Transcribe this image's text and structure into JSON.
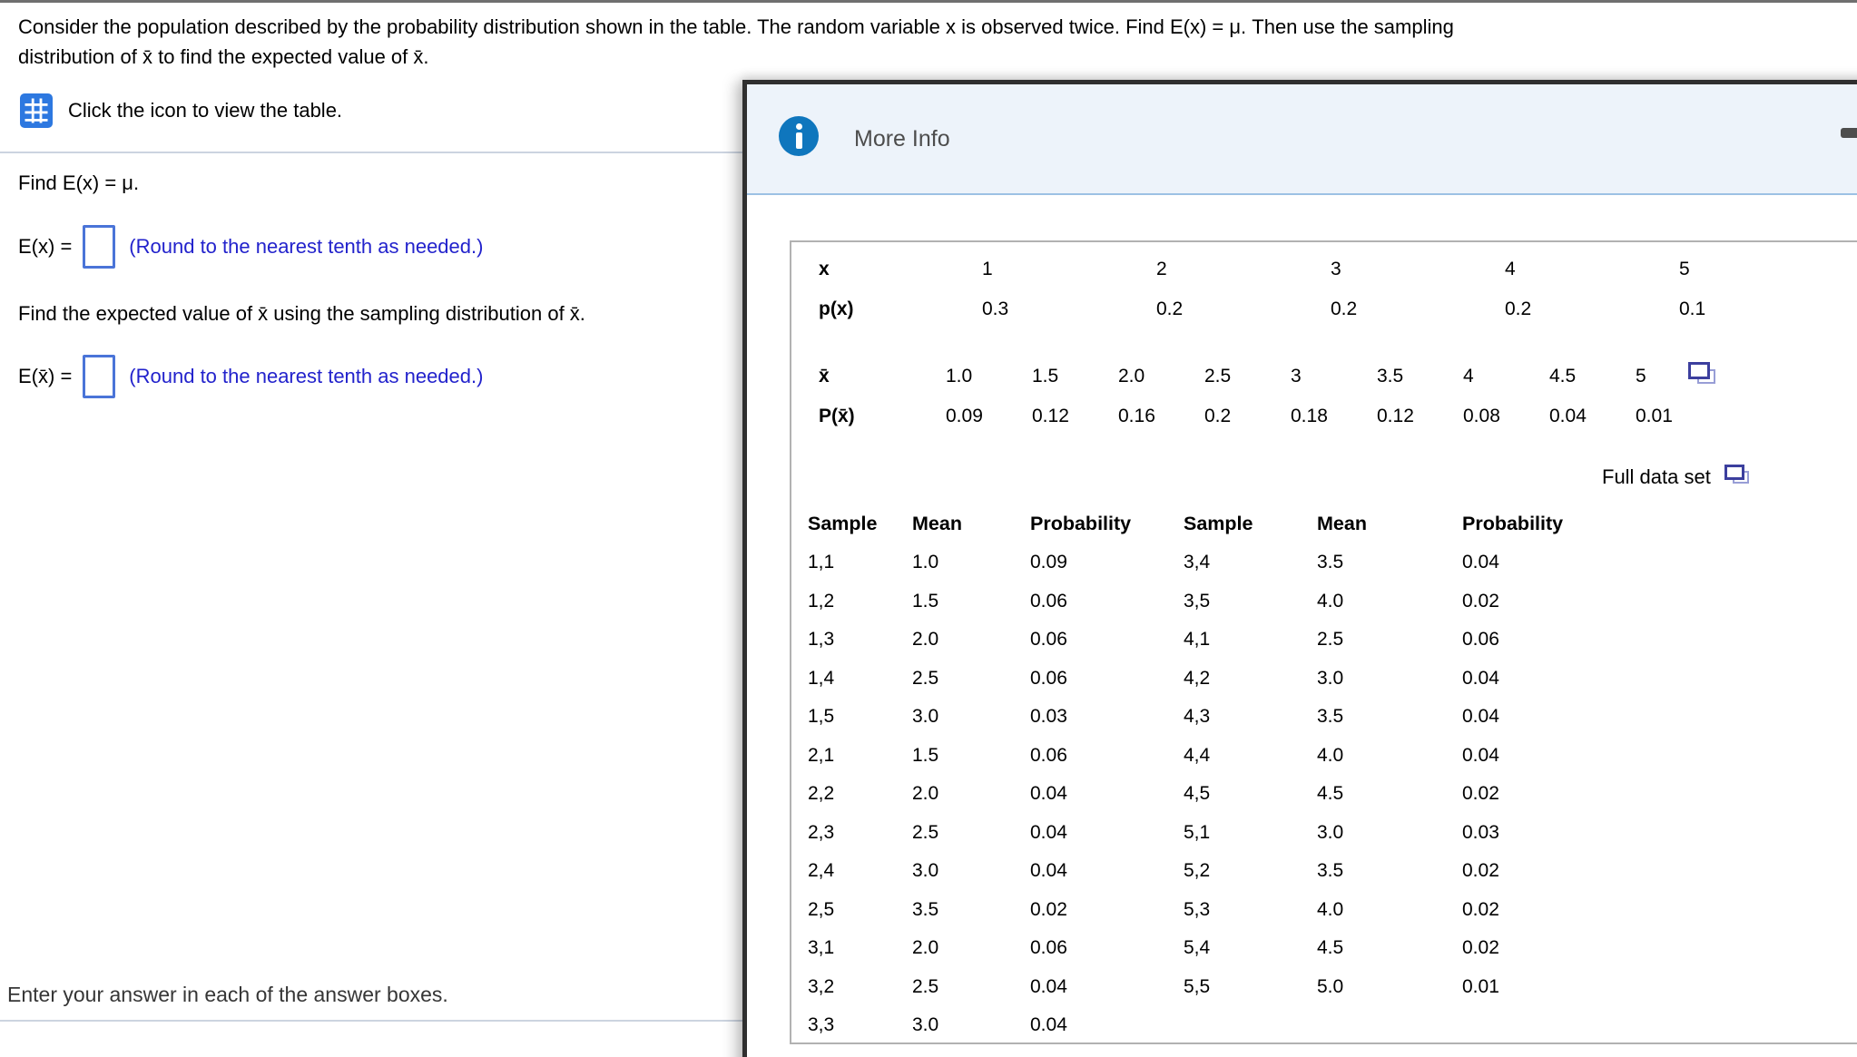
{
  "problem": {
    "line1": "Consider the population described by the probability distribution shown in the table. The random variable x is observed twice. Find E(x) = μ. Then use the sampling",
    "line2": "distribution of x̄ to find the expected value of x̄.",
    "click_instruction": "Click the icon to view the table.",
    "find_ex": "Find E(x) = μ.",
    "ex_prefix": "E(x) =",
    "ex_value": "",
    "round_hint": "(Round to the nearest tenth as needed.)",
    "find_exbar": "Find the expected value of x̄ using the sampling distribution of x̄.",
    "exbar_prefix": "E(x̄) =",
    "exbar_value": "",
    "footer": "Enter your answer in each of the answer boxes."
  },
  "popup": {
    "title": "More Info",
    "full_data_set": "Full data set"
  },
  "tables": {
    "population": {
      "rows": [
        [
          "x",
          "1",
          "2",
          "3",
          "4",
          "5"
        ],
        [
          "p(x)",
          "0.3",
          "0.2",
          "0.2",
          "0.2",
          "0.1"
        ]
      ]
    },
    "sampling": {
      "rows": [
        [
          "x̄",
          "1.0",
          "1.5",
          "2.0",
          "2.5",
          "3",
          "3.5",
          "4",
          "4.5",
          "5"
        ],
        [
          "P(x̄)",
          "0.09",
          "0.12",
          "0.16",
          "0.2",
          "0.18",
          "0.12",
          "0.08",
          "0.04",
          "0.01"
        ]
      ]
    },
    "full_data": {
      "headers": [
        "Sample",
        "Mean",
        "Probability",
        "Sample",
        "Mean",
        "Probability"
      ],
      "rows": [
        [
          "1,1",
          "1.0",
          "0.09",
          "3,4",
          "3.5",
          "0.04"
        ],
        [
          "1,2",
          "1.5",
          "0.06",
          "3,5",
          "4.0",
          "0.02"
        ],
        [
          "1,3",
          "2.0",
          "0.06",
          "4,1",
          "2.5",
          "0.06"
        ],
        [
          "1,4",
          "2.5",
          "0.06",
          "4,2",
          "3.0",
          "0.04"
        ],
        [
          "1,5",
          "3.0",
          "0.03",
          "4,3",
          "3.5",
          "0.04"
        ],
        [
          "2,1",
          "1.5",
          "0.06",
          "4,4",
          "4.0",
          "0.04"
        ],
        [
          "2,2",
          "2.0",
          "0.04",
          "4,5",
          "4.5",
          "0.02"
        ],
        [
          "2,3",
          "2.5",
          "0.04",
          "5,1",
          "3.0",
          "0.03"
        ],
        [
          "2,4",
          "3.0",
          "0.04",
          "5,2",
          "3.5",
          "0.02"
        ],
        [
          "2,5",
          "3.5",
          "0.02",
          "5,3",
          "4.0",
          "0.02"
        ],
        [
          "3,1",
          "2.0",
          "0.06",
          "5,4",
          "4.5",
          "0.02"
        ],
        [
          "3,2",
          "2.5",
          "0.04",
          "5,5",
          "5.0",
          "0.01"
        ],
        [
          "3,3",
          "3.0",
          "0.04",
          "",
          "",
          ""
        ]
      ]
    }
  },
  "icons": {
    "view_table": "table-grid-icon",
    "info": "info-icon",
    "minimize": "minimize-icon",
    "pop_out": "open-in-new-window-icon"
  },
  "colors": {
    "accent_text_blue": "#2222cc",
    "answer_box_border": "#4a74d8",
    "info_icon_blue": "#0f76bd",
    "dialog_border": "#2f2f2f",
    "dialog_header_bg": "#edf3fa",
    "dialog_header_rule": "#9cc1e4",
    "table_box_border": "#b2b2b2",
    "table_icon_blue": "#2d78e0",
    "copy_icon_dark": "#3c3f9e",
    "copy_icon_light": "#989ed6"
  }
}
